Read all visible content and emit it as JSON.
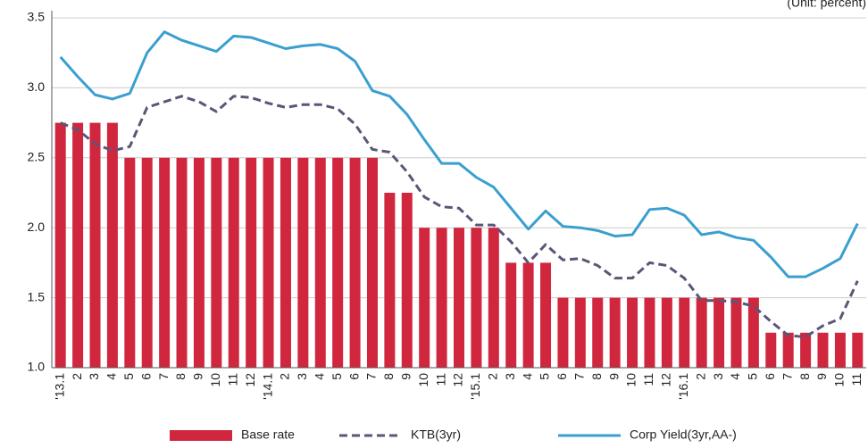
{
  "chart_data": {
    "type": "bar_line",
    "unit_note": "(Unit: percent)",
    "categories": [
      "'13.1",
      "2",
      "3",
      "4",
      "5",
      "6",
      "7",
      "8",
      "9",
      "10",
      "11",
      "12",
      "'14.1",
      "2",
      "3",
      "4",
      "5",
      "6",
      "7",
      "8",
      "9",
      "10",
      "11",
      "12",
      "'15.1",
      "2",
      "3",
      "4",
      "5",
      "6",
      "7",
      "8",
      "9",
      "10",
      "11",
      "12",
      "'16.1",
      "2",
      "3",
      "4",
      "5",
      "6",
      "7",
      "8",
      "9",
      "10",
      "11"
    ],
    "series": [
      {
        "name": "Base rate",
        "type": "bar",
        "color": "#d0273e",
        "values": [
          2.75,
          2.75,
          2.75,
          2.75,
          2.5,
          2.5,
          2.5,
          2.5,
          2.5,
          2.5,
          2.5,
          2.5,
          2.5,
          2.5,
          2.5,
          2.5,
          2.5,
          2.5,
          2.5,
          2.25,
          2.25,
          2.0,
          2.0,
          2.0,
          2.0,
          2.0,
          1.75,
          1.75,
          1.75,
          1.5,
          1.5,
          1.5,
          1.5,
          1.5,
          1.5,
          1.5,
          1.5,
          1.5,
          1.5,
          1.5,
          1.5,
          1.25,
          1.25,
          1.25,
          1.25,
          1.25,
          1.25
        ]
      },
      {
        "name": "KTB(3yr)",
        "type": "line",
        "dashed": true,
        "color": "#5b5577",
        "values": [
          2.75,
          2.7,
          2.6,
          2.55,
          2.58,
          2.86,
          2.9,
          2.94,
          2.9,
          2.83,
          2.94,
          2.93,
          2.89,
          2.86,
          2.88,
          2.88,
          2.85,
          2.74,
          2.56,
          2.54,
          2.4,
          2.22,
          2.15,
          2.14,
          2.02,
          2.02,
          1.9,
          1.75,
          1.88,
          1.77,
          1.78,
          1.73,
          1.64,
          1.64,
          1.75,
          1.73,
          1.64,
          1.48,
          1.48,
          1.47,
          1.44,
          1.33,
          1.23,
          1.22,
          1.3,
          1.35,
          1.62
        ]
      },
      {
        "name": "Corp Yield(3yr,AA-)",
        "type": "line",
        "dashed": false,
        "color": "#3a9fcf",
        "values": [
          3.22,
          3.08,
          2.95,
          2.92,
          2.96,
          3.25,
          3.4,
          3.34,
          3.3,
          3.26,
          3.37,
          3.36,
          3.32,
          3.28,
          3.3,
          3.31,
          3.28,
          3.19,
          2.98,
          2.94,
          2.81,
          2.63,
          2.46,
          2.46,
          2.36,
          2.29,
          2.14,
          1.99,
          2.12,
          2.01,
          2.0,
          1.98,
          1.94,
          1.95,
          2.13,
          2.14,
          2.09,
          1.95,
          1.97,
          1.93,
          1.91,
          1.79,
          1.65,
          1.65,
          1.71,
          1.78,
          2.03
        ]
      }
    ],
    "ylim": [
      1,
      3.5
    ],
    "yticks": [
      {
        "value": 1,
        "label": "1.0"
      },
      1.5,
      {
        "value": 2,
        "label": "2.0"
      },
      2.5,
      {
        "value": 3,
        "label": "3.0"
      },
      3.5
    ],
    "grid": true,
    "legend": "bottom"
  }
}
